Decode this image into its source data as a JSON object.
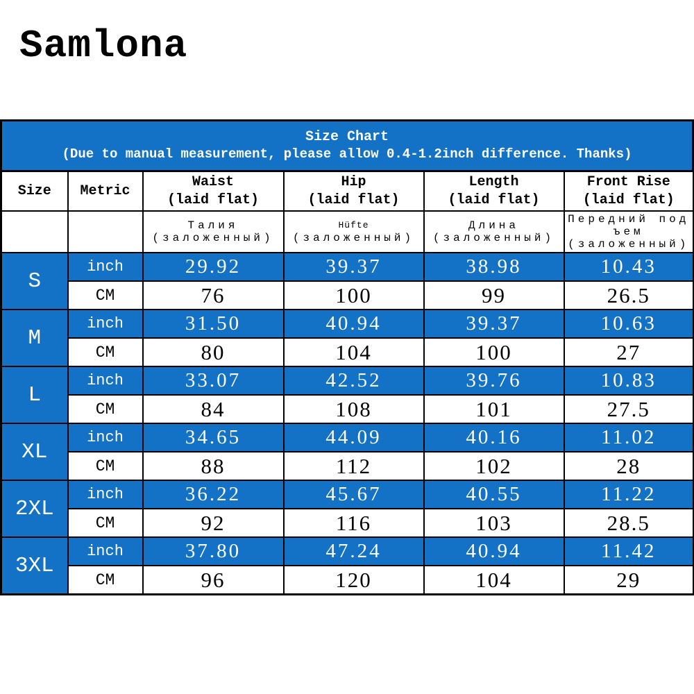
{
  "brand": "Samlona",
  "colors": {
    "accent_blue": "#1472c6",
    "border_black": "#000000",
    "text_on_blue": "#ffffff",
    "text": "#000000",
    "background": "#ffffff"
  },
  "size_chart": {
    "title": "Size Chart",
    "subtitle": "(Due to manual measurement, please allow 0.4-1.2inch difference. Thanks)"
  },
  "table": {
    "columns": [
      {
        "label": "Size",
        "sub": "",
        "alt": "",
        "alt_sub": ""
      },
      {
        "label": "Metric",
        "sub": "",
        "alt": "",
        "alt_sub": ""
      },
      {
        "label": "Waist",
        "sub": "(laid flat)",
        "alt": "Талия",
        "alt_sub": "(заложенный)"
      },
      {
        "label": "Hip",
        "sub": "(laid flat)",
        "alt": "Hüfte",
        "alt_sub": "(заложенный)"
      },
      {
        "label": "Length",
        "sub": "(laid flat)",
        "alt": "Длина",
        "alt_sub": "(заложенный)"
      },
      {
        "label": "Front Rise",
        "sub": "(laid flat)",
        "alt": "Передний подъем",
        "alt_sub": "(заложенный)"
      }
    ],
    "units": {
      "row1": "inch",
      "row2": "CM"
    },
    "rows": [
      {
        "size": "S",
        "inch": [
          "29.92",
          "39.37",
          "38.98",
          "10.43"
        ],
        "cm": [
          "76",
          "100",
          "99",
          "26.5"
        ]
      },
      {
        "size": "M",
        "inch": [
          "31.50",
          "40.94",
          "39.37",
          "10.63"
        ],
        "cm": [
          "80",
          "104",
          "100",
          "27"
        ]
      },
      {
        "size": "L",
        "inch": [
          "33.07",
          "42.52",
          "39.76",
          "10.83"
        ],
        "cm": [
          "84",
          "108",
          "101",
          "27.5"
        ]
      },
      {
        "size": "XL",
        "inch": [
          "34.65",
          "44.09",
          "40.16",
          "11.02"
        ],
        "cm": [
          "88",
          "112",
          "102",
          "28"
        ]
      },
      {
        "size": "2XL",
        "inch": [
          "36.22",
          "45.67",
          "40.55",
          "11.22"
        ],
        "cm": [
          "92",
          "116",
          "103",
          "28.5"
        ]
      },
      {
        "size": "3XL",
        "inch": [
          "37.80",
          "47.24",
          "40.94",
          "11.42"
        ],
        "cm": [
          "96",
          "120",
          "104",
          "29"
        ]
      }
    ]
  }
}
